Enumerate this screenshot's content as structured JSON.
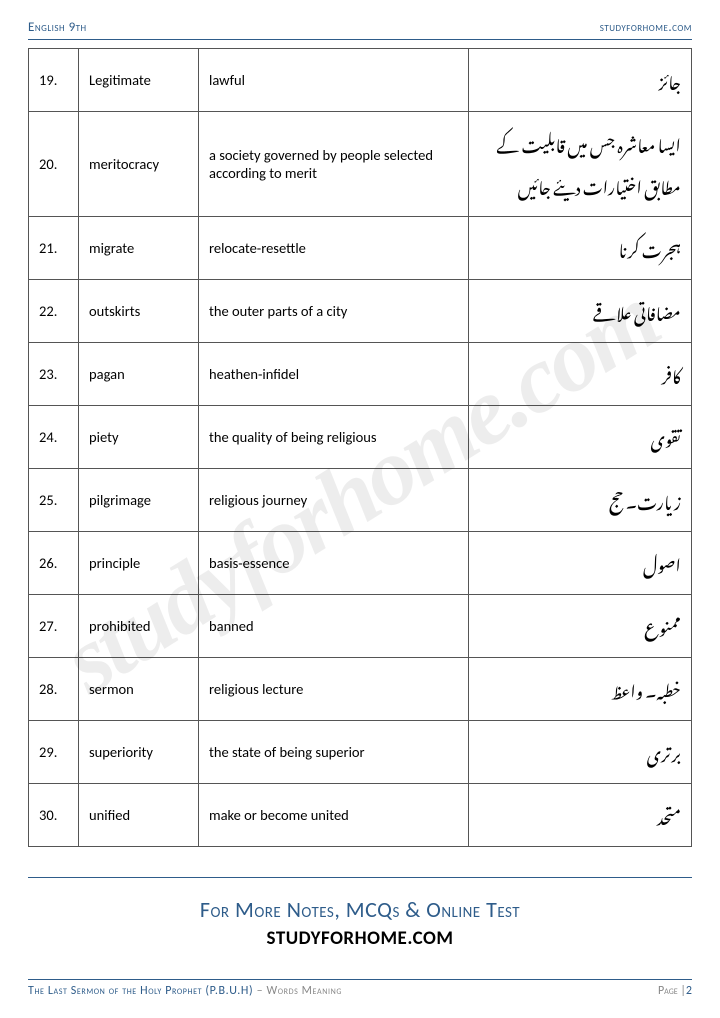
{
  "header": {
    "left": "English 9th",
    "right": "studyforhome.com"
  },
  "rows": [
    {
      "n": "19.",
      "w": "Legitimate",
      "m": "lawful",
      "u": "جائز"
    },
    {
      "n": "20.",
      "w": "meritocracy",
      "m": "a society governed by people selected according to merit",
      "u": "ایسا معاشرہ جس میں قابلیت کے مطابق اختیارات دیئے جائیں"
    },
    {
      "n": "21.",
      "w": "migrate",
      "m": "relocate-resettle",
      "u": "ہجرت کرنا"
    },
    {
      "n": "22.",
      "w": "outskirts",
      "m": "the outer parts of a city",
      "u": "مضافاتی علاقے"
    },
    {
      "n": "23.",
      "w": "pagan",
      "m": "heathen-infidel",
      "u": "کافر"
    },
    {
      "n": "24.",
      "w": "piety",
      "m": "the quality of being religious",
      "u": "تقوی"
    },
    {
      "n": "25.",
      "w": "pilgrimage",
      "m": "religious journey",
      "u": "زیارت۔ حج"
    },
    {
      "n": "26.",
      "w": "principle",
      "m": "basis-essence",
      "u": "اصول"
    },
    {
      "n": "27.",
      "w": "prohibited",
      "m": "banned",
      "u": "ممنوع"
    },
    {
      "n": "28.",
      "w": "sermon",
      "m": "religious lecture",
      "u": "خطبہ۔ واعظ"
    },
    {
      "n": "29.",
      "w": "superiority",
      "m": "the state of being superior",
      "u": "برتری"
    },
    {
      "n": "30.",
      "w": "unified",
      "m": "make or become united",
      "u": "متحد"
    }
  ],
  "promo": {
    "title": "For More Notes, MCQs & Online Test",
    "site": "STUDYFORHOME.COM"
  },
  "footer": {
    "title": "The Last Sermon of the Holy Prophet (P.B.U.H)",
    "sub": " – Words Meaning",
    "page_label": "Page |",
    "page_num": "2"
  },
  "watermark": "studyforhome.com"
}
